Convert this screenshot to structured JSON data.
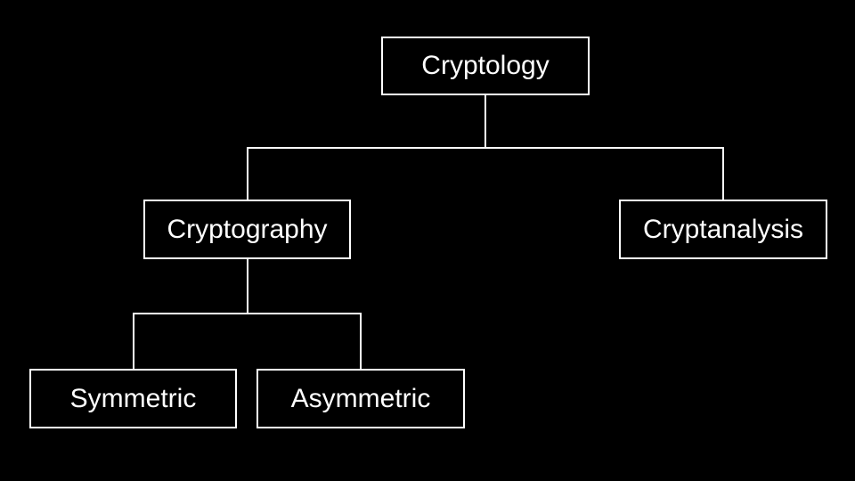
{
  "diagram": {
    "type": "tree",
    "colors": {
      "background": "#000000",
      "stroke": "#ffffff",
      "text": "#ffffff"
    },
    "nodes": {
      "cryptology": {
        "label": "Cryptology"
      },
      "cryptography": {
        "label": "Cryptography"
      },
      "cryptanalysis": {
        "label": "Cryptanalysis"
      },
      "symmetric": {
        "label": "Symmetric"
      },
      "asymmetric": {
        "label": "Asymmetric"
      }
    },
    "edges": [
      {
        "from": "cryptology",
        "to": "cryptography"
      },
      {
        "from": "cryptology",
        "to": "cryptanalysis"
      },
      {
        "from": "cryptography",
        "to": "symmetric"
      },
      {
        "from": "cryptography",
        "to": "asymmetric"
      }
    ]
  }
}
